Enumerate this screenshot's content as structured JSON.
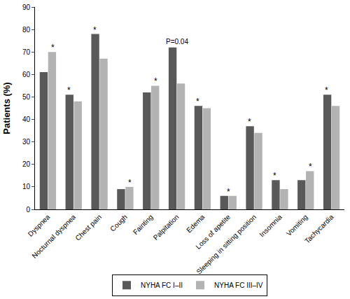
{
  "chart_data": {
    "type": "bar",
    "y_label": "Patients (%)",
    "categories": [
      "Dyspnea",
      "Nocturnal dyspnea",
      "Chest pain",
      "Cough",
      "Fainting",
      "Palpitation",
      "Edema",
      "Loss of apetite",
      "Sleeping in sitting position",
      "Insomnia",
      "Vomiting",
      "Tachycardia"
    ],
    "series": [
      {
        "name": "NYHA FC I–II",
        "color": "#595959",
        "values": [
          61,
          51,
          78,
          9,
          52,
          72,
          46,
          6,
          37,
          13,
          13,
          51
        ]
      },
      {
        "name": "NYHA FC III–IV",
        "color": "#b3b3b3",
        "values": [
          70,
          48,
          67,
          10,
          55,
          56,
          45,
          6,
          34,
          9,
          17,
          46
        ]
      }
    ],
    "annotations": [
      {
        "category": "Dyspnea",
        "text": "*"
      },
      {
        "category": "Nocturnal dyspnea",
        "text": "*"
      },
      {
        "category": "Chest pain",
        "text": "*"
      },
      {
        "category": "Cough",
        "text": "*"
      },
      {
        "category": "Fainting",
        "text": "*"
      },
      {
        "category": "Palpitation",
        "text": "P=0.04"
      },
      {
        "category": "Edema",
        "text": "*"
      },
      {
        "category": "Loss of apetite",
        "text": "*"
      },
      {
        "category": "Sleeping in sitting position",
        "text": "*"
      },
      {
        "category": "Insomnia",
        "text": "*"
      },
      {
        "category": "Vomiting",
        "text": "*"
      },
      {
        "category": "Tachycardia",
        "text": "*"
      }
    ],
    "ylim": [
      0,
      90
    ],
    "yticks": [
      0,
      10,
      20,
      30,
      40,
      50,
      60,
      70,
      80,
      90
    ],
    "grid": false,
    "legend": "bottom"
  }
}
